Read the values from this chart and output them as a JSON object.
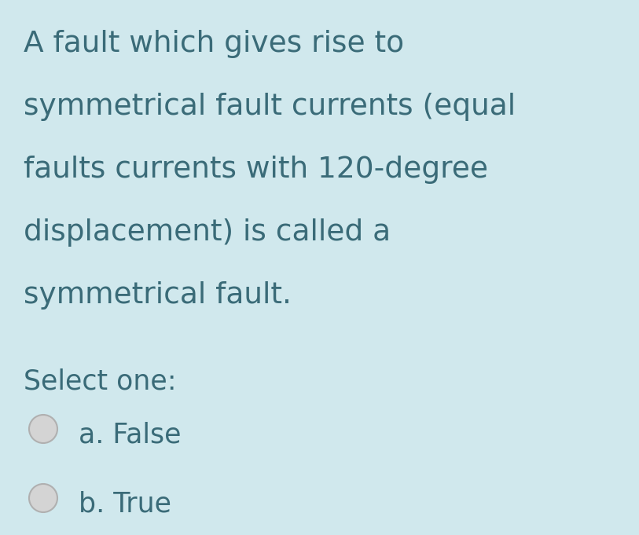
{
  "background_color": "#d0e8ed",
  "text_color": "#3a6b78",
  "question_lines": [
    "A fault which gives rise to",
    "symmetrical fault currents (equal",
    "faults currents with 120-degree",
    "displacement) is called a",
    "symmetrical fault."
  ],
  "select_label": "Select one:",
  "options": [
    "a. False",
    "b. True"
  ],
  "question_fontsize": 27,
  "select_fontsize": 25,
  "option_fontsize": 25,
  "radio_color_face": "#d4d4d4",
  "radio_color_edge": "#b0b0b0",
  "fig_width": 8.13,
  "fig_height": 6.81,
  "dpi": 100
}
